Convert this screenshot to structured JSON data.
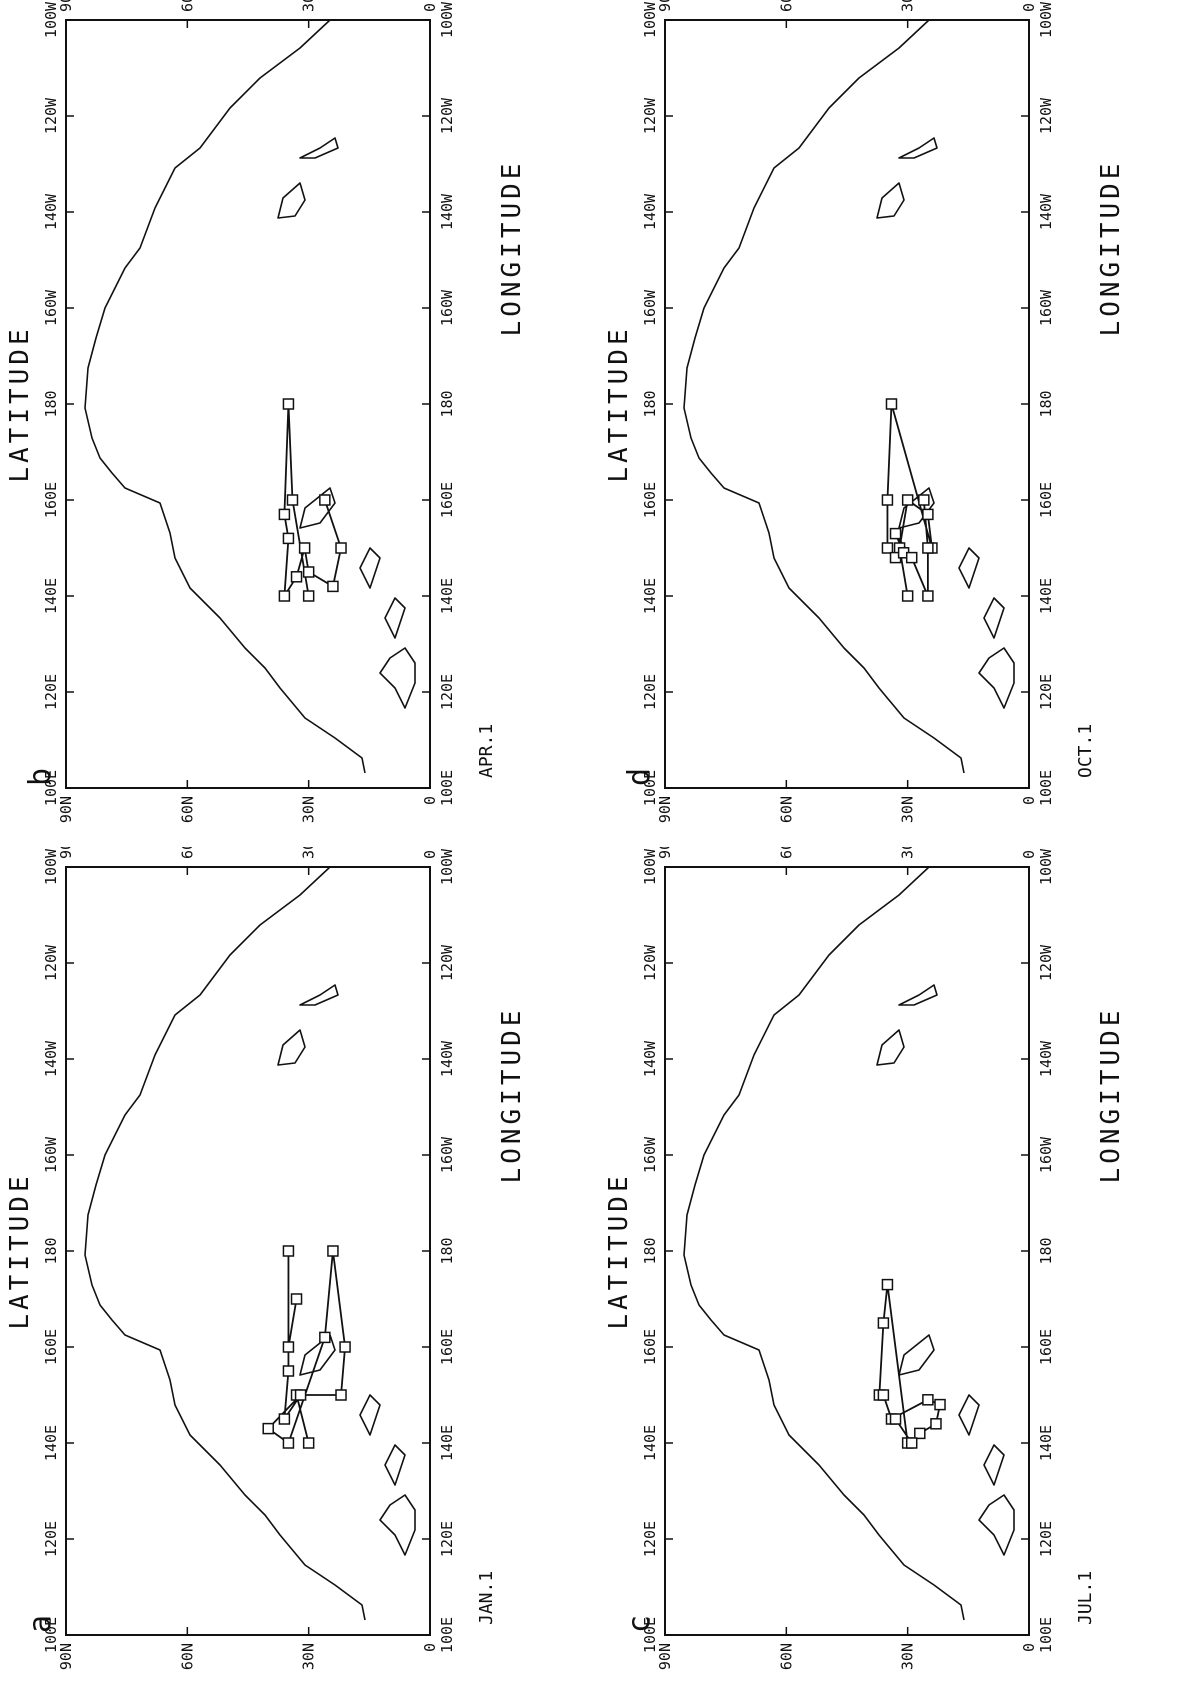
{
  "figure": {
    "axis_label_x": "LONGITUDE",
    "axis_label_y": "LATITUDE",
    "lon_ticks": [
      "100E",
      "120E",
      "140E",
      "160E",
      "180",
      "160W",
      "140W",
      "120W",
      "100W"
    ],
    "lat_ticks": [
      "90N",
      "60N",
      "30N",
      "0"
    ]
  },
  "panels": [
    {
      "id": "a",
      "letter": "a",
      "date": "JAN.1",
      "trajectory": [
        [
          140,
          30
        ],
        [
          150,
          33
        ],
        [
          150,
          22
        ],
        [
          160,
          21
        ],
        [
          180,
          24
        ],
        [
          162,
          26
        ],
        [
          140,
          35
        ],
        [
          143,
          40
        ],
        [
          150,
          32
        ],
        [
          145,
          36
        ],
        [
          155,
          35
        ],
        [
          180,
          35
        ],
        [
          160,
          35
        ],
        [
          170,
          33
        ]
      ]
    },
    {
      "id": "b",
      "letter": "b",
      "date": "APR.1",
      "trajectory": [
        [
          140,
          30
        ],
        [
          160,
          34
        ],
        [
          180,
          35
        ],
        [
          157,
          36
        ],
        [
          152,
          35
        ],
        [
          140,
          36
        ],
        [
          144,
          33
        ],
        [
          150,
          31
        ],
        [
          145,
          30
        ],
        [
          142,
          24
        ],
        [
          150,
          22
        ],
        [
          160,
          26
        ]
      ]
    },
    {
      "id": "c",
      "letter": "c",
      "date": "JUL.1",
      "trajectory": [
        [
          140,
          30
        ],
        [
          173,
          35
        ],
        [
          165,
          36
        ],
        [
          150,
          37
        ],
        [
          150,
          36
        ],
        [
          145,
          34
        ],
        [
          149,
          25
        ],
        [
          148,
          22
        ],
        [
          144,
          23
        ],
        [
          142,
          27
        ],
        [
          140,
          29
        ],
        [
          145,
          33
        ]
      ]
    },
    {
      "id": "d",
      "letter": "d",
      "date": "OCT.1",
      "trajectory": [
        [
          140,
          30
        ],
        [
          150,
          32
        ],
        [
          160,
          30
        ],
        [
          157,
          25
        ],
        [
          150,
          24
        ],
        [
          180,
          34
        ],
        [
          160,
          35
        ],
        [
          150,
          35
        ],
        [
          148,
          33
        ],
        [
          149,
          31
        ],
        [
          153,
          33
        ],
        [
          148,
          29
        ],
        [
          140,
          25
        ],
        [
          150,
          25
        ],
        [
          160,
          26
        ]
      ]
    }
  ]
}
